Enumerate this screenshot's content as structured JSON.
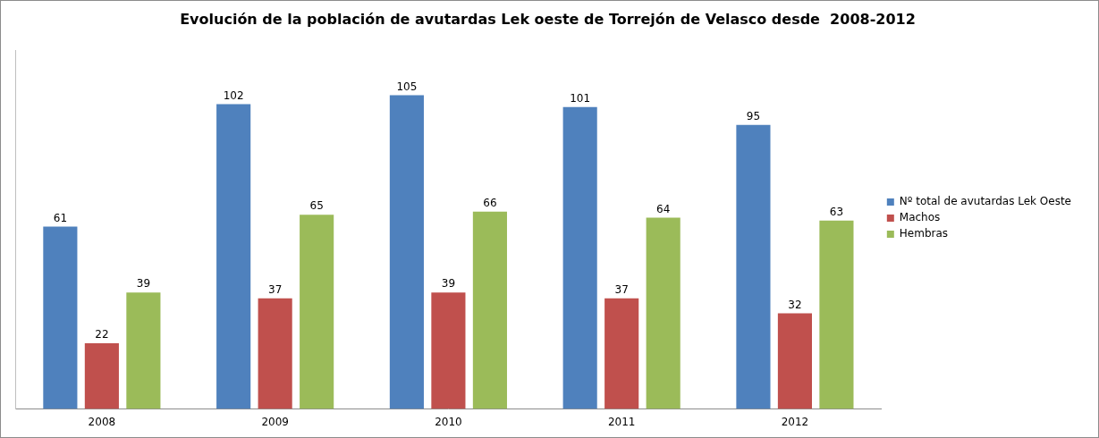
{
  "chart_data": {
    "type": "bar",
    "title": "Evolución de la población de avutardas Lek oeste de Torrejón de Velasco desde  2008-2012",
    "categories": [
      "2008",
      "2009",
      "2010",
      "2011",
      "2012"
    ],
    "series": [
      {
        "name": "Nº total de avutardas Lek Oeste",
        "color": "#4f81bd",
        "values": [
          61,
          102,
          105,
          101,
          95
        ]
      },
      {
        "name": "Machos",
        "color": "#c0504d",
        "values": [
          22,
          37,
          39,
          37,
          32
        ]
      },
      {
        "name": "Hembras",
        "color": "#9bbb59",
        "values": [
          39,
          65,
          66,
          64,
          63
        ]
      }
    ],
    "ylim": [
      0,
      120
    ],
    "grid": false,
    "legend": "right",
    "data_labels": true,
    "tick_labels": "x"
  }
}
